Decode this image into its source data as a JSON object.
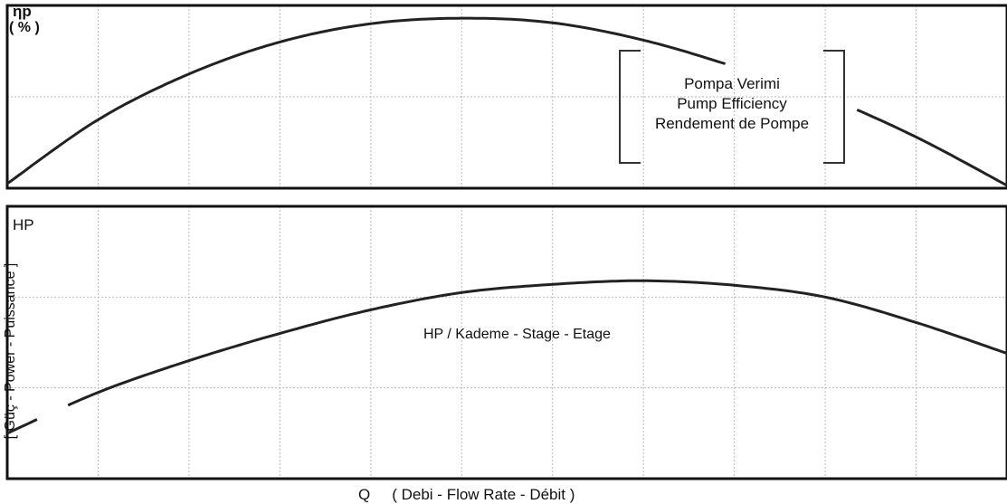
{
  "chart_data": [
    {
      "type": "line",
      "name": "efficiency-panel",
      "ylabel": "ηp",
      "yunit": "( % )",
      "legend": [
        "Pompa Verimi",
        "Pump Efficiency",
        "Rendement de Pompe"
      ],
      "legend_placement": "top-right",
      "grid": true,
      "xlim": [
        0,
        11
      ],
      "ylim": [
        0,
        2
      ],
      "x": [
        0,
        1,
        2,
        3,
        4,
        5,
        6,
        7,
        8,
        9,
        10,
        11
      ],
      "y": [
        0.05,
        0.75,
        1.25,
        1.6,
        1.8,
        1.86,
        1.81,
        1.62,
        1.33,
        1.0,
        0.56,
        0.03
      ],
      "gap_x": [
        7.95,
        9.3
      ]
    },
    {
      "type": "line",
      "name": "power-panel",
      "ylabel": "HP",
      "ylabel_rotated": "[ Güç - Power - Puissance ]",
      "series_label": "HP / Kademe - Stage - Etage",
      "xlabel": "Q",
      "xlabel_detail": "( Debi - Flow Rate - Débit )",
      "grid": true,
      "xlim": [
        0,
        11
      ],
      "ylim": [
        0,
        3
      ],
      "x": [
        0,
        1,
        2,
        3,
        4,
        5,
        6,
        7,
        8,
        9,
        10,
        11
      ],
      "y": [
        0.5,
        0.95,
        1.3,
        1.6,
        1.86,
        2.05,
        2.14,
        2.18,
        2.13,
        2.0,
        1.72,
        1.38
      ],
      "gap_x": [
        0.37,
        0.65
      ]
    }
  ]
}
